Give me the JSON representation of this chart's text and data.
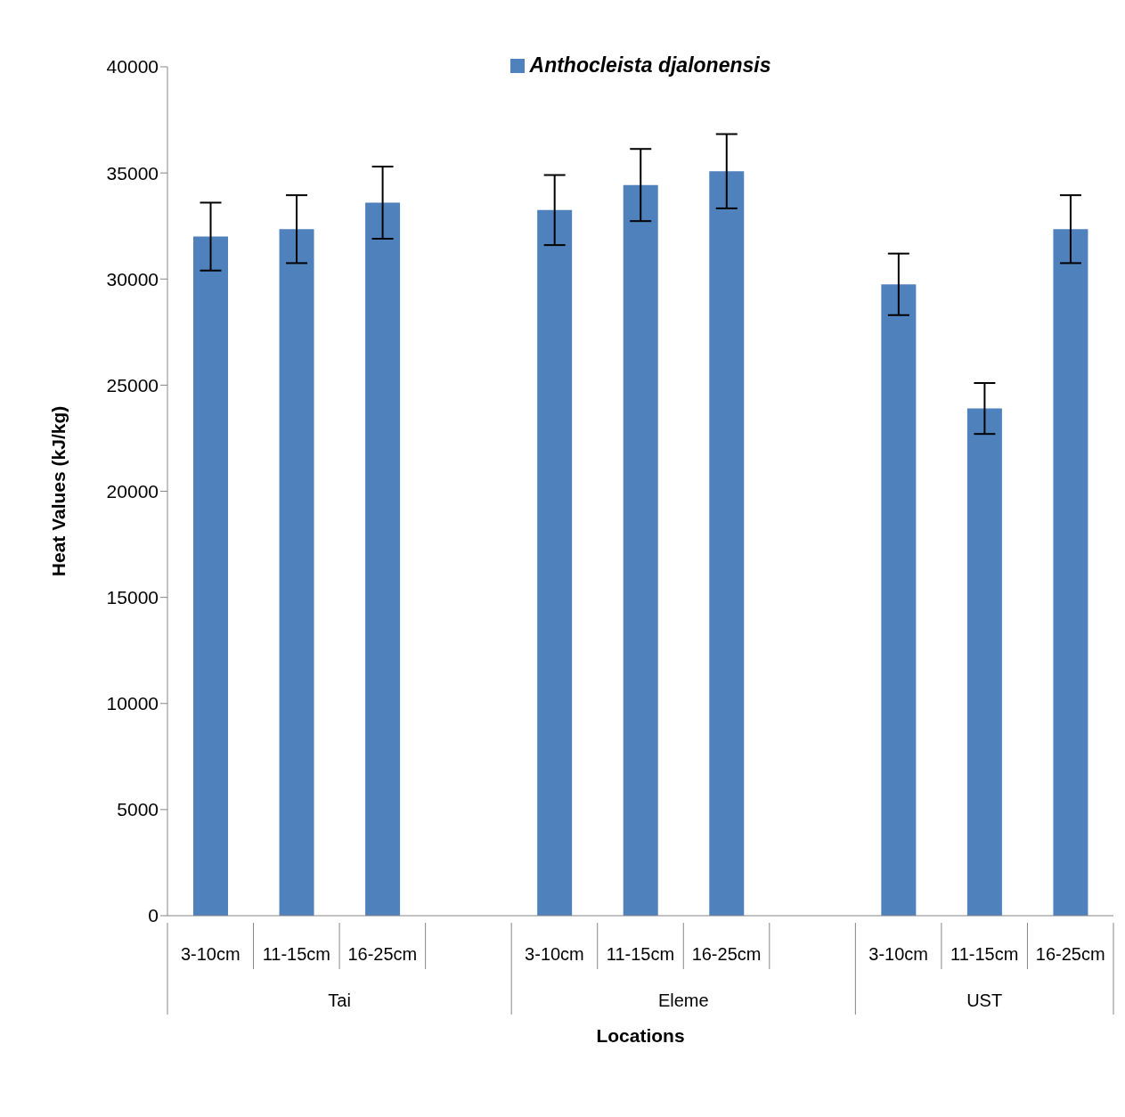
{
  "chart_data": {
    "type": "bar",
    "xlabel": "Locations",
    "ylabel": "Heat Values (kJ/kg)",
    "categories": [
      "3-10cm",
      "11-15cm",
      "16-25cm",
      null,
      "3-10cm",
      "11-15cm",
      "16-25cm",
      null,
      "3-10cm",
      "11-15cm",
      "16-25cm"
    ],
    "annotations": [
      "Tai",
      "Eleme",
      "UST"
    ],
    "series": [
      {
        "name": "Anthocleista djalonensis",
        "color": "#4f81bd",
        "values": [
          32000,
          32350,
          33600,
          null,
          33250,
          34430,
          35080,
          null,
          29750,
          23900,
          32350
        ],
        "errors": [
          1600,
          1600,
          1700,
          null,
          1650,
          1700,
          1750,
          null,
          1450,
          1200,
          1600
        ]
      }
    ],
    "ylim": [
      0,
      40000
    ],
    "yticks": [
      0,
      5000,
      10000,
      15000,
      20000,
      25000,
      30000,
      35000,
      40000
    ],
    "grid": false,
    "legend": "top"
  }
}
